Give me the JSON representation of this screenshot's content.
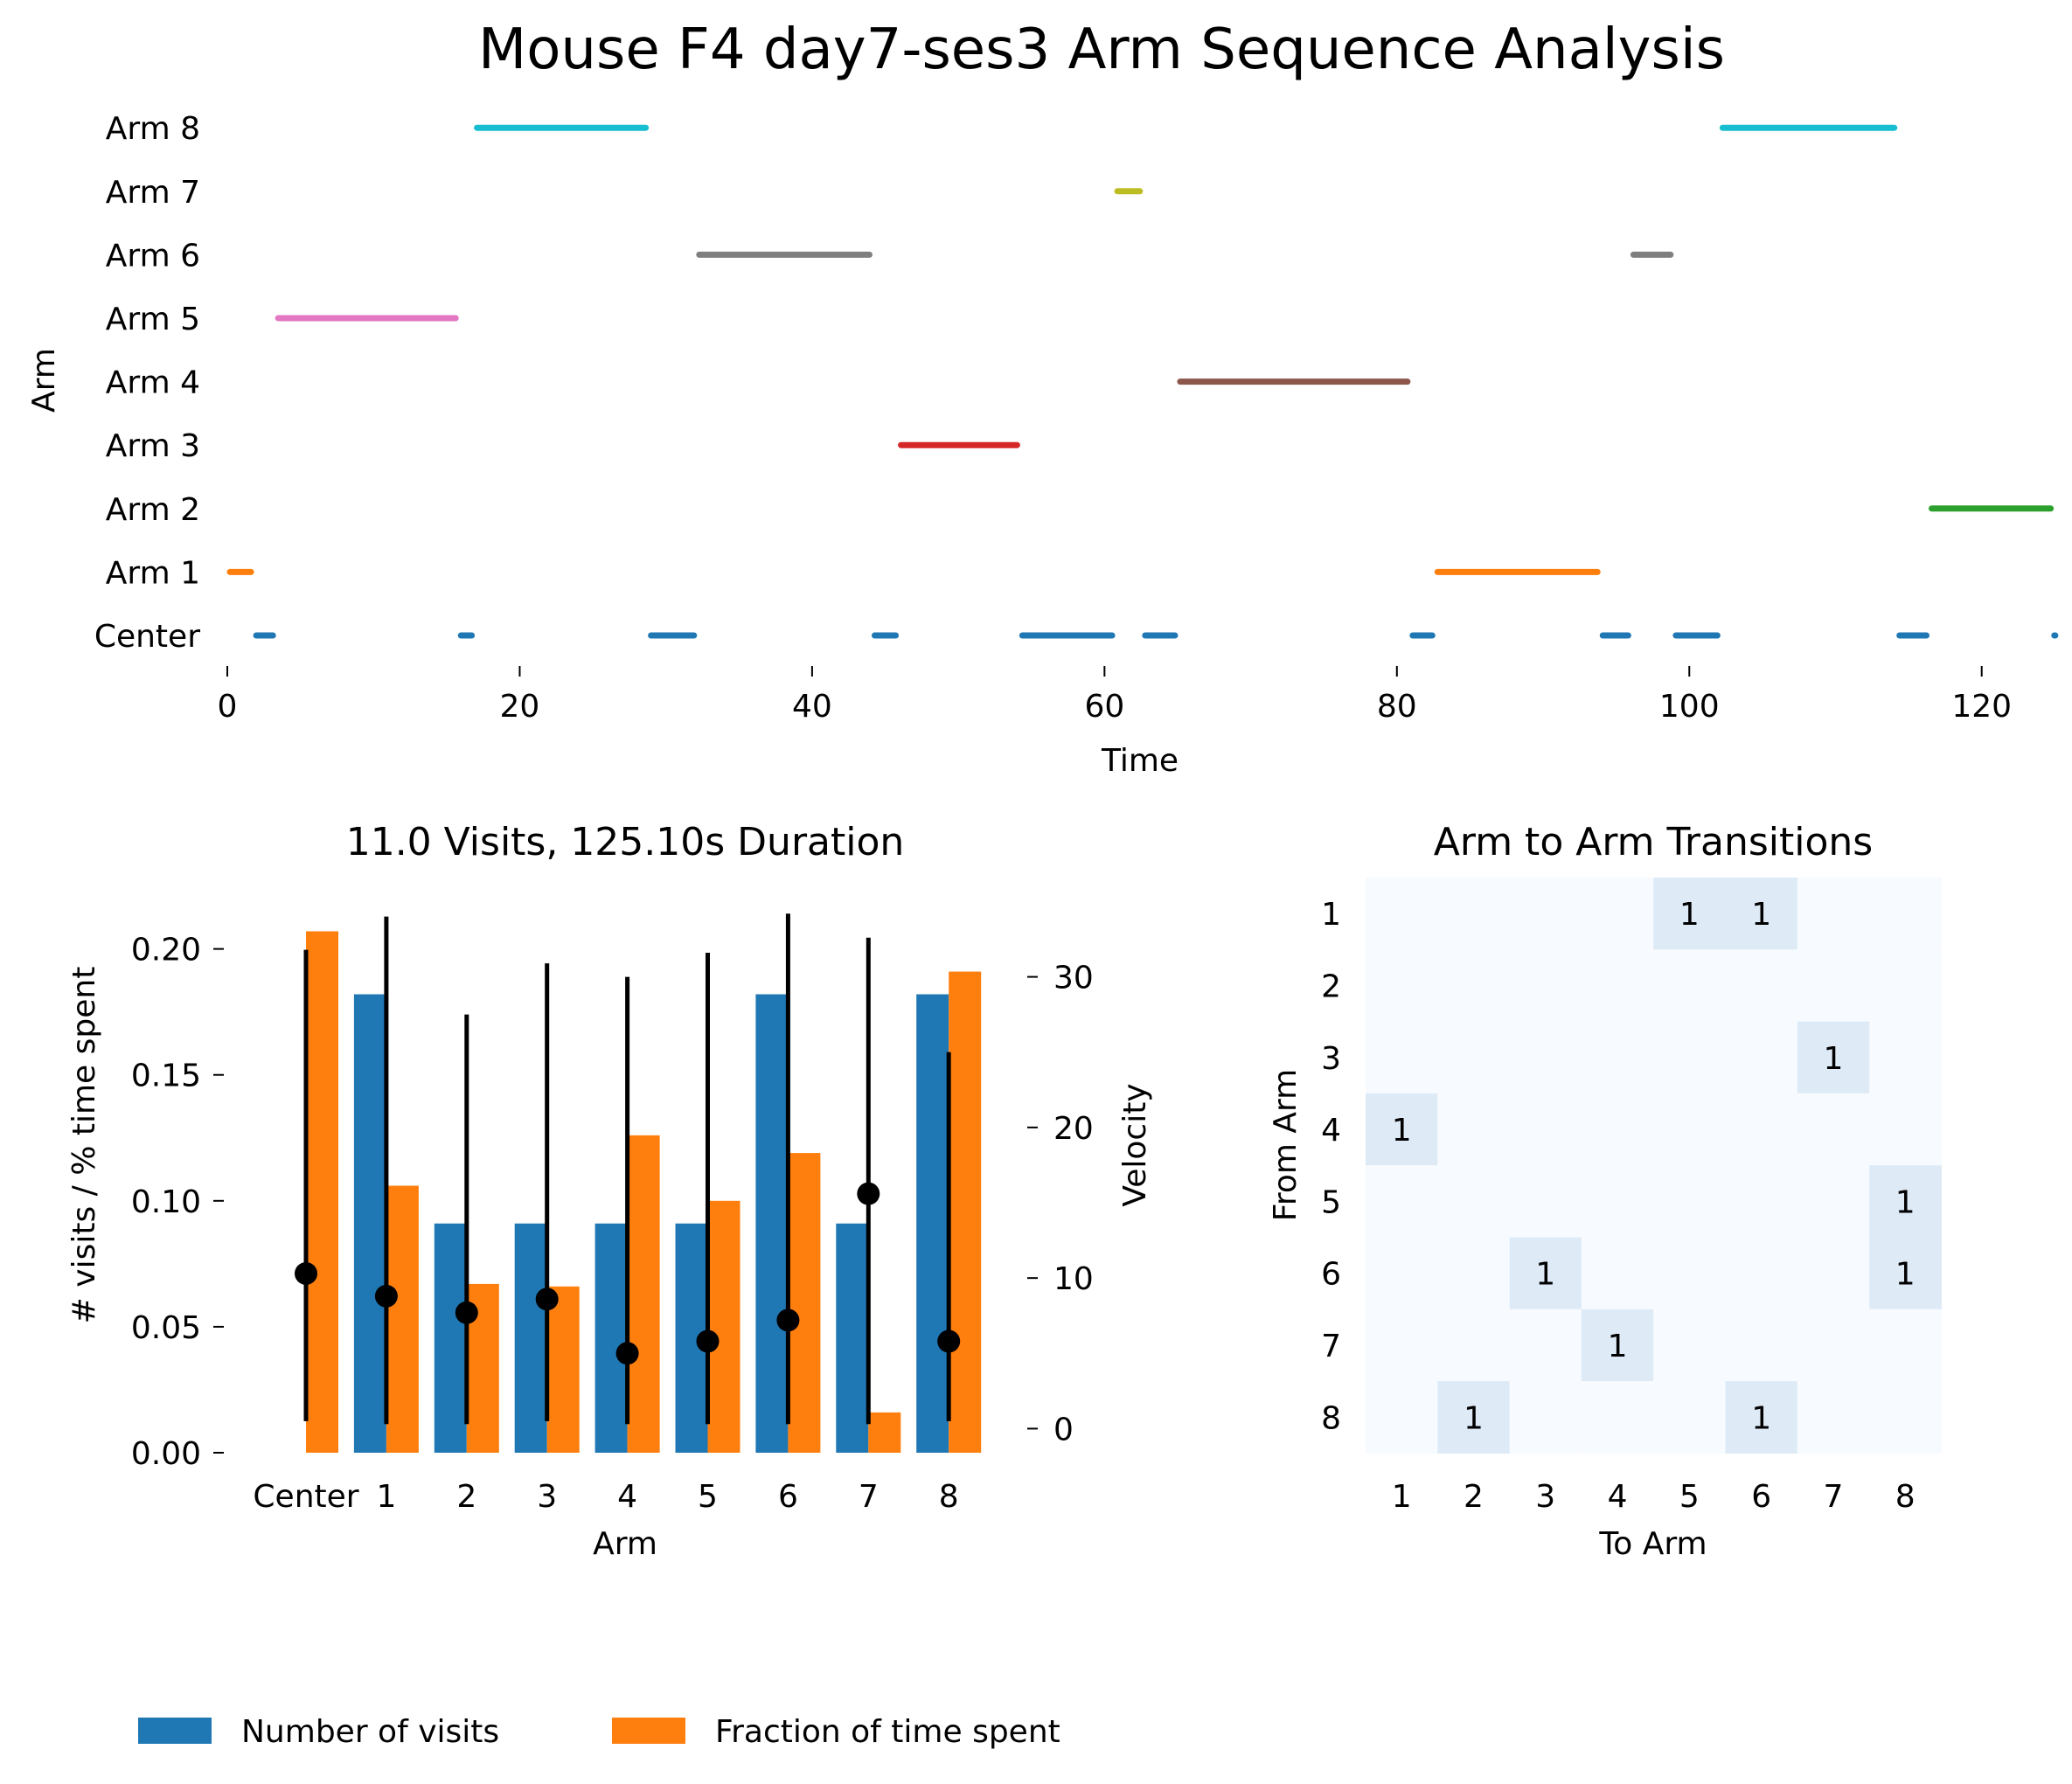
{
  "title": "Mouse F4 day7-ses3 Arm Sequence Analysis",
  "chart_data": [
    {
      "type": "timeline",
      "xlabel": "Time",
      "ylabel": "Arm",
      "xlim": [
        0,
        125.1
      ],
      "x_ticks": [
        "0",
        "20",
        "40",
        "60",
        "80",
        "100",
        "120"
      ],
      "y_categories": [
        "Center",
        "Arm 1",
        "Arm 2",
        "Arm 3",
        "Arm 4",
        "Arm 5",
        "Arm 6",
        "Arm 7",
        "Arm 8"
      ],
      "colors": {
        "Center": "#1f77b4",
        "Arm 1": "#ff7f0e",
        "Arm 2": "#2ca02c",
        "Arm 3": "#d62728",
        "Arm 4": "#8c564b",
        "Arm 5": "#e377c2",
        "Arm 6": "#7f7f7f",
        "Arm 7": "#bcbd22",
        "Arm 8": "#17becf"
      },
      "segments": [
        {
          "arm": "Arm 1",
          "start": 0.0,
          "end": 1.8
        },
        {
          "arm": "Center",
          "start": 1.8,
          "end": 3.3
        },
        {
          "arm": "Arm 5",
          "start": 3.3,
          "end": 15.8
        },
        {
          "arm": "Center",
          "start": 15.8,
          "end": 16.9
        },
        {
          "arm": "Arm 8",
          "start": 16.9,
          "end": 28.8
        },
        {
          "arm": "Center",
          "start": 28.8,
          "end": 32.1
        },
        {
          "arm": "Arm 6",
          "start": 32.1,
          "end": 44.1
        },
        {
          "arm": "Center",
          "start": 44.1,
          "end": 45.9
        },
        {
          "arm": "Arm 3",
          "start": 45.9,
          "end": 54.2
        },
        {
          "arm": "Center",
          "start": 54.2,
          "end": 60.7
        },
        {
          "arm": "Arm 7",
          "start": 60.7,
          "end": 62.6
        },
        {
          "arm": "Center",
          "start": 62.6,
          "end": 65.0
        },
        {
          "arm": "Arm 4",
          "start": 65.0,
          "end": 80.9
        },
        {
          "arm": "Center",
          "start": 80.9,
          "end": 82.6
        },
        {
          "arm": "Arm 1",
          "start": 82.6,
          "end": 93.9
        },
        {
          "arm": "Center",
          "start": 93.9,
          "end": 96.0
        },
        {
          "arm": "Arm 6",
          "start": 96.0,
          "end": 98.9
        },
        {
          "arm": "Center",
          "start": 98.9,
          "end": 102.1
        },
        {
          "arm": "Arm 8",
          "start": 102.1,
          "end": 114.2
        },
        {
          "arm": "Center",
          "start": 114.2,
          "end": 116.4
        },
        {
          "arm": "Arm 2",
          "start": 116.4,
          "end": 124.9
        },
        {
          "arm": "Center",
          "start": 124.9,
          "end": 125.1
        }
      ]
    },
    {
      "type": "bar",
      "title": "11.0 Visits, 125.10s Duration",
      "xlabel": "Arm",
      "ylabel": "# visits / % time spent",
      "y2label": "Velocity",
      "categories": [
        "Center",
        "1",
        "2",
        "3",
        "4",
        "5",
        "6",
        "7",
        "8"
      ],
      "ylim": [
        0,
        0.22
      ],
      "y_ticks": [
        "0.00",
        "0.05",
        "0.10",
        "0.15",
        "0.20"
      ],
      "y2lim": [
        -1.6,
        35.2
      ],
      "y2_ticks": [
        "0",
        "10",
        "20",
        "30"
      ],
      "series": [
        {
          "name": "Number of visits",
          "color": "#1f77b4",
          "values": [
            0,
            0.182,
            0.091,
            0.091,
            0.091,
            0.091,
            0.182,
            0.091,
            0.182
          ]
        },
        {
          "name": "Fraction of time spent",
          "color": "#ff7f0e",
          "values": [
            0.207,
            0.106,
            0.067,
            0.066,
            0.126,
            0.1,
            0.119,
            0.016,
            0.191
          ]
        }
      ],
      "velocity": {
        "mean": [
          10.3,
          8.8,
          7.7,
          8.6,
          5.0,
          5.8,
          7.2,
          15.6,
          5.8
        ],
        "low": [
          0.5,
          0.3,
          0.3,
          0.5,
          0.3,
          0.3,
          0.3,
          0.3,
          0.5
        ],
        "high": [
          31.8,
          34.0,
          27.5,
          30.9,
          30.0,
          31.6,
          34.2,
          32.6,
          25.0
        ]
      },
      "legend": [
        "Number of visits",
        "Fraction of time spent"
      ],
      "legend_position": "bottom-left"
    },
    {
      "type": "heatmap",
      "title": "Arm to Arm Transitions",
      "xlabel": "To Arm",
      "ylabel": "From Arm",
      "x_categories": [
        "1",
        "2",
        "3",
        "4",
        "5",
        "6",
        "7",
        "8"
      ],
      "y_categories": [
        "1",
        "2",
        "3",
        "4",
        "5",
        "6",
        "7",
        "8"
      ],
      "cell_colors": {
        "zero": "#f7fbff",
        "one": "#deebf7"
      },
      "matrix": [
        [
          0,
          0,
          0,
          0,
          1,
          1,
          0,
          0
        ],
        [
          0,
          0,
          0,
          0,
          0,
          0,
          0,
          0
        ],
        [
          0,
          0,
          0,
          0,
          0,
          0,
          1,
          0
        ],
        [
          1,
          0,
          0,
          0,
          0,
          0,
          0,
          0
        ],
        [
          0,
          0,
          0,
          0,
          0,
          0,
          0,
          1
        ],
        [
          0,
          0,
          1,
          0,
          0,
          0,
          0,
          1
        ],
        [
          0,
          0,
          0,
          1,
          0,
          0,
          0,
          0
        ],
        [
          0,
          1,
          0,
          0,
          0,
          1,
          0,
          0
        ]
      ]
    }
  ]
}
